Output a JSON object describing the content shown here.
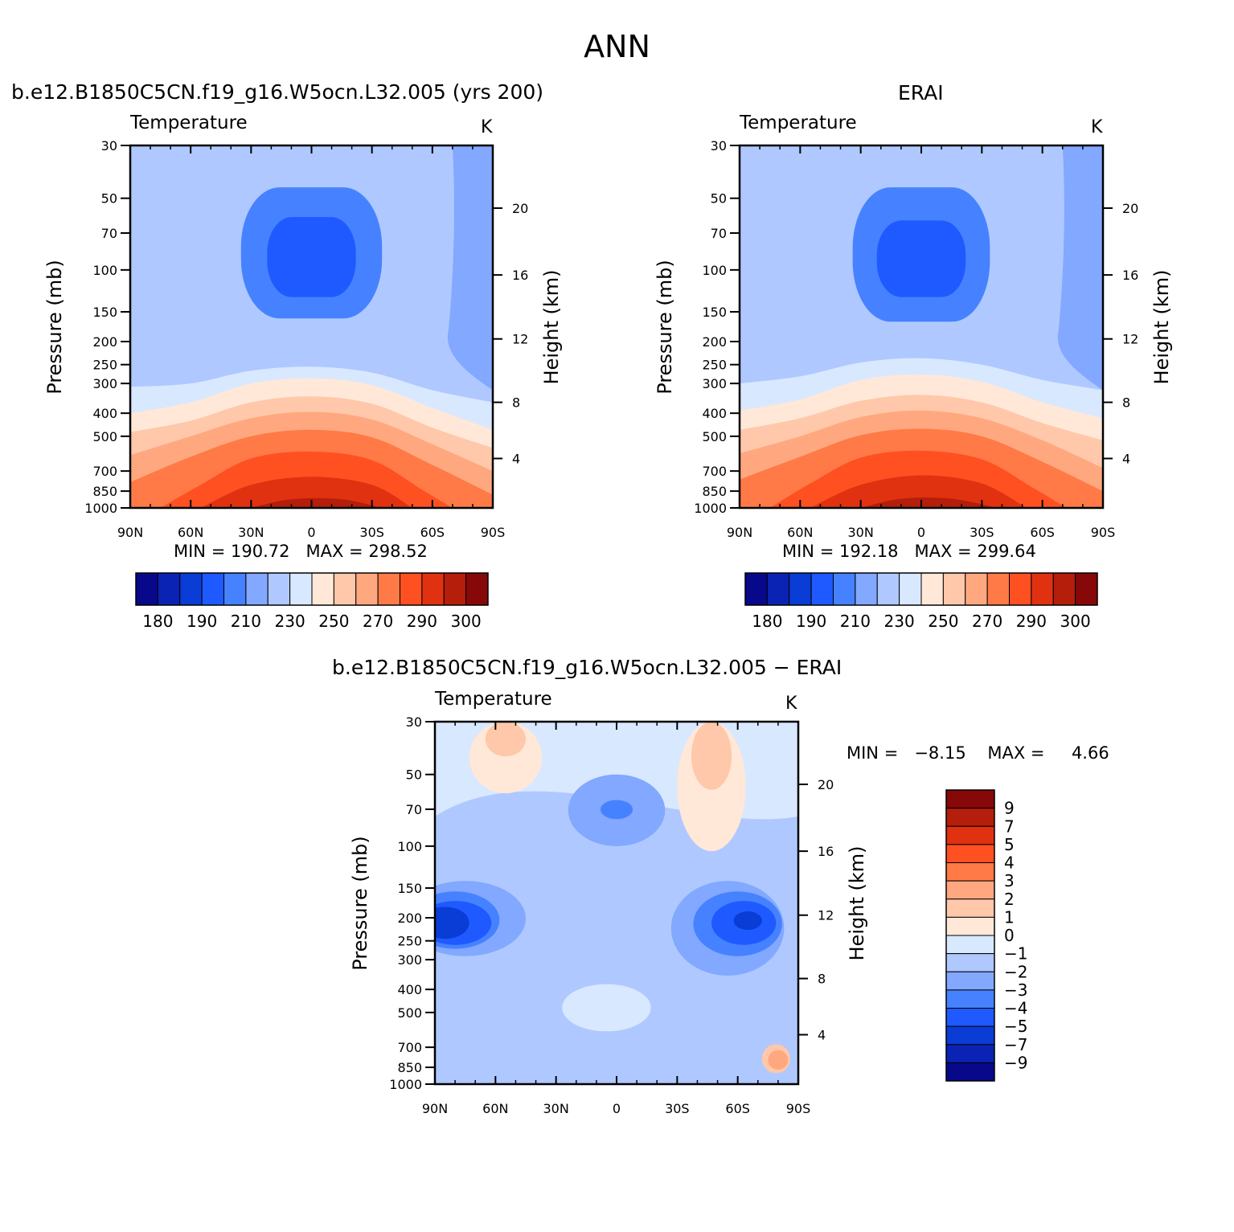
{
  "figure": {
    "title": "ANN"
  },
  "chart_data": [
    {
      "type": "heatmap",
      "panel_title": "b.e12.B1850C5CN.f19_g16.W5ocn.L32.005 (yrs 200)",
      "variable_label": "Temperature",
      "units": "K",
      "xlabel": "",
      "ylabel": "Pressure (mb)",
      "y2label": "Height (km)",
      "x_tick_labels": [
        "90N",
        "60N",
        "30N",
        "0",
        "30S",
        "60S",
        "90S"
      ],
      "x_tick_values": [
        90,
        60,
        30,
        0,
        -30,
        -60,
        -90
      ],
      "y_tick_labels": [
        "30",
        "50",
        "70",
        "100",
        "150",
        "200",
        "250",
        "300",
        "400",
        "500",
        "700",
        "850",
        "1000"
      ],
      "y_tick_values": [
        30,
        50,
        70,
        100,
        150,
        200,
        250,
        300,
        400,
        500,
        700,
        850,
        1000
      ],
      "y_scale": "log",
      "y_reversed": true,
      "y2_tick_labels": [
        "4",
        "8",
        "12",
        "16",
        "20"
      ],
      "min_label": "MIN =",
      "max_label": "MAX =",
      "min": "190.72",
      "max": "298.52",
      "colorbar_levels": [
        "180",
        "190",
        "210",
        "230",
        "250",
        "270",
        "290",
        "300"
      ],
      "contours": [
        {
          "level": 230,
          "points": [
            [
              90,
              310
            ],
            [
              60,
              300
            ],
            [
              30,
              265
            ],
            [
              0,
              255
            ],
            [
              -30,
              270
            ],
            [
              -60,
              320
            ],
            [
              -90,
              360
            ],
            [
              -90,
              1000
            ],
            [
              90,
              1000
            ]
          ]
        },
        {
          "level": 240,
          "points": [
            [
              90,
              400
            ],
            [
              60,
              360
            ],
            [
              30,
              300
            ],
            [
              0,
              285
            ],
            [
              -30,
              305
            ],
            [
              -60,
              380
            ],
            [
              -90,
              470
            ],
            [
              -90,
              1000
            ],
            [
              90,
              1000
            ]
          ]
        },
        {
          "level": 250,
          "points": [
            [
              90,
              480
            ],
            [
              60,
              430
            ],
            [
              30,
              360
            ],
            [
              0,
              340
            ],
            [
              -30,
              365
            ],
            [
              -60,
              460
            ],
            [
              -90,
              560
            ],
            [
              -90,
              1000
            ],
            [
              90,
              1000
            ]
          ]
        },
        {
          "level": 260,
          "points": [
            [
              90,
              600
            ],
            [
              60,
              500
            ],
            [
              30,
              420
            ],
            [
              0,
              395
            ],
            [
              -30,
              425
            ],
            [
              -60,
              540
            ],
            [
              -90,
              700
            ],
            [
              -90,
              1000
            ],
            [
              90,
              1000
            ]
          ]
        },
        {
          "level": 270,
          "points": [
            [
              90,
              780
            ],
            [
              60,
              610
            ],
            [
              30,
              500
            ],
            [
              0,
              470
            ],
            [
              -30,
              505
            ],
            [
              -60,
              660
            ],
            [
              -90,
              880
            ],
            [
              -90,
              1000
            ],
            [
              90,
              1000
            ]
          ]
        },
        {
          "level": 280,
          "points": [
            [
              75,
              1000
            ],
            [
              55,
              800
            ],
            [
              30,
              620
            ],
            [
              0,
              580
            ],
            [
              -30,
              630
            ],
            [
              -55,
              840
            ],
            [
              -70,
              1000
            ]
          ]
        },
        {
          "level": 290,
          "points": [
            [
              55,
              1000
            ],
            [
              30,
              800
            ],
            [
              0,
              740
            ],
            [
              -30,
              800
            ],
            [
              -50,
              1000
            ]
          ]
        },
        {
          "level": 295,
          "points": [
            [
              30,
              1000
            ],
            [
              10,
              920
            ],
            [
              -15,
              920
            ],
            [
              -35,
              1000
            ]
          ]
        }
      ],
      "low_regions": [
        {
          "level": 200,
          "center": [
            0,
            105
          ],
          "rx_deg": 35,
          "top": 45,
          "bottom": 160
        },
        {
          "level": 195,
          "center": [
            0,
            95
          ],
          "rx_deg": 22,
          "top": 60,
          "bottom": 130
        }
      ]
    },
    {
      "type": "heatmap",
      "panel_title": "ERAI",
      "variable_label": "Temperature",
      "units": "K",
      "xlabel": "",
      "ylabel": "Pressure (mb)",
      "y2label": "Height (km)",
      "x_tick_labels": [
        "90N",
        "60N",
        "30N",
        "0",
        "30S",
        "60S",
        "90S"
      ],
      "x_tick_values": [
        90,
        60,
        30,
        0,
        -30,
        -60,
        -90
      ],
      "y_tick_labels": [
        "30",
        "50",
        "70",
        "100",
        "150",
        "200",
        "250",
        "300",
        "400",
        "500",
        "700",
        "850",
        "1000"
      ],
      "y_tick_values": [
        30,
        50,
        70,
        100,
        150,
        200,
        250,
        300,
        400,
        500,
        700,
        850,
        1000
      ],
      "y_scale": "log",
      "y_reversed": true,
      "y2_tick_labels": [
        "4",
        "8",
        "12",
        "16",
        "20"
      ],
      "min_label": "MIN =",
      "max_label": "MAX =",
      "min": "192.18",
      "max": "299.64",
      "colorbar_levels": [
        "180",
        "190",
        "210",
        "230",
        "250",
        "270",
        "290",
        "300"
      ],
      "contours": [
        {
          "level": 230,
          "points": [
            [
              90,
              300
            ],
            [
              60,
              280
            ],
            [
              30,
              245
            ],
            [
              0,
              235
            ],
            [
              -30,
              250
            ],
            [
              -60,
              290
            ],
            [
              -90,
              320
            ],
            [
              -90,
              1000
            ],
            [
              90,
              1000
            ]
          ]
        },
        {
          "level": 240,
          "points": [
            [
              90,
              390
            ],
            [
              60,
              350
            ],
            [
              30,
              290
            ],
            [
              0,
              275
            ],
            [
              -30,
              295
            ],
            [
              -60,
              360
            ],
            [
              -90,
              420
            ],
            [
              -90,
              1000
            ],
            [
              90,
              1000
            ]
          ]
        },
        {
          "level": 250,
          "points": [
            [
              90,
              470
            ],
            [
              60,
              420
            ],
            [
              30,
              355
            ],
            [
              0,
              335
            ],
            [
              -30,
              360
            ],
            [
              -60,
              440
            ],
            [
              -90,
              520
            ],
            [
              -90,
              1000
            ],
            [
              90,
              1000
            ]
          ]
        },
        {
          "level": 260,
          "points": [
            [
              90,
              590
            ],
            [
              60,
              500
            ],
            [
              30,
              415
            ],
            [
              0,
              390
            ],
            [
              -30,
              420
            ],
            [
              -60,
              520
            ],
            [
              -90,
              680
            ],
            [
              -90,
              1000
            ],
            [
              90,
              1000
            ]
          ]
        },
        {
          "level": 270,
          "points": [
            [
              90,
              760
            ],
            [
              60,
              610
            ],
            [
              30,
              495
            ],
            [
              0,
              465
            ],
            [
              -30,
              500
            ],
            [
              -60,
              640
            ],
            [
              -90,
              850
            ],
            [
              -90,
              1000
            ],
            [
              90,
              1000
            ]
          ]
        },
        {
          "level": 280,
          "points": [
            [
              75,
              1000
            ],
            [
              55,
              790
            ],
            [
              30,
              615
            ],
            [
              0,
              575
            ],
            [
              -30,
              625
            ],
            [
              -55,
              820
            ],
            [
              -72,
              1000
            ]
          ]
        },
        {
          "level": 290,
          "points": [
            [
              55,
              1000
            ],
            [
              30,
              800
            ],
            [
              0,
              730
            ],
            [
              -30,
              790
            ],
            [
              -52,
              1000
            ]
          ]
        },
        {
          "level": 295,
          "points": [
            [
              30,
              1000
            ],
            [
              10,
              915
            ],
            [
              -15,
              915
            ],
            [
              -38,
              1000
            ]
          ]
        }
      ],
      "low_regions": [
        {
          "level": 200,
          "center": [
            0,
            100
          ],
          "rx_deg": 34,
          "top": 45,
          "bottom": 165
        },
        {
          "level": 195,
          "center": [
            0,
            95
          ],
          "rx_deg": 22,
          "top": 62,
          "bottom": 130
        }
      ]
    },
    {
      "type": "heatmap",
      "panel_title": "b.e12.B1850C5CN.f19_g16.W5ocn.L32.005 − ERAI",
      "variable_label": "Temperature",
      "units": "K",
      "xlabel": "",
      "ylabel": "Pressure (mb)",
      "y2label": "Height (km)",
      "x_tick_labels": [
        "90N",
        "60N",
        "30N",
        "0",
        "30S",
        "60S",
        "90S"
      ],
      "x_tick_values": [
        90,
        60,
        30,
        0,
        -30,
        -60,
        -90
      ],
      "y_tick_labels": [
        "30",
        "50",
        "70",
        "100",
        "150",
        "200",
        "250",
        "300",
        "400",
        "500",
        "700",
        "850",
        "1000"
      ],
      "y_tick_values": [
        30,
        50,
        70,
        100,
        150,
        200,
        250,
        300,
        400,
        500,
        700,
        850,
        1000
      ],
      "y_scale": "log",
      "y_reversed": true,
      "y2_tick_labels": [
        "4",
        "8",
        "12",
        "16",
        "20"
      ],
      "min_label": "MIN =",
      "max_label": "MAX =",
      "min": "−8.15",
      "max": "4.66",
      "colorbar_levels": [
        "9",
        "7",
        "5",
        "4",
        "3",
        "2",
        "1",
        "0",
        "−1",
        "−2",
        "−3",
        "−4",
        "−5",
        "−7",
        "−9"
      ],
      "features": [
        {
          "level": 1,
          "center": [
            55,
            38
          ],
          "rx_deg": 18,
          "top": 30,
          "bottom": 60
        },
        {
          "level": 2,
          "center": [
            55,
            32
          ],
          "rx_deg": 10,
          "top": 30,
          "bottom": 42
        },
        {
          "level": 1,
          "center": [
            -47,
            50
          ],
          "rx_deg": 17,
          "top": 30,
          "bottom": 105
        },
        {
          "level": 2,
          "center": [
            -47,
            38
          ],
          "rx_deg": 10,
          "top": 30,
          "bottom": 58
        },
        {
          "level": -3,
          "center": [
            0,
            70
          ],
          "rx_deg": 24,
          "top": 50,
          "bottom": 100
        },
        {
          "level": -4,
          "center": [
            0,
            70
          ],
          "rx_deg": 8,
          "top": 64,
          "bottom": 77
        },
        {
          "level": -3,
          "center": [
            75,
            205
          ],
          "rx_deg": 30,
          "top": 140,
          "bottom": 290
        },
        {
          "level": -4,
          "center": [
            80,
            205
          ],
          "rx_deg": 22,
          "top": 155,
          "bottom": 270
        },
        {
          "level": -5,
          "center": [
            80,
            210
          ],
          "rx_deg": 18,
          "top": 170,
          "bottom": 260
        },
        {
          "level": -7,
          "center": [
            85,
            210
          ],
          "rx_deg": 12,
          "top": 180,
          "bottom": 245
        },
        {
          "level": -3,
          "center": [
            -55,
            210
          ],
          "rx_deg": 28,
          "top": 140,
          "bottom": 350
        },
        {
          "level": -4,
          "center": [
            -60,
            205
          ],
          "rx_deg": 22,
          "top": 155,
          "bottom": 290
        },
        {
          "level": -5,
          "center": [
            -63,
            205
          ],
          "rx_deg": 16,
          "top": 170,
          "bottom": 260
        },
        {
          "level": -7,
          "center": [
            -65,
            205
          ],
          "rx_deg": 7,
          "top": 188,
          "bottom": 225
        },
        {
          "level": -1,
          "center": [
            5,
            450
          ],
          "rx_deg": 22,
          "top": 380,
          "bottom": 600
        },
        {
          "level": 0,
          "center": [
            0,
            440
          ],
          "rx_deg": 10,
          "top": 400,
          "bottom": 520
        },
        {
          "level": 2,
          "center": [
            -79,
            790
          ],
          "rx_deg": 7,
          "top": 680,
          "bottom": 900
        },
        {
          "level": 3,
          "center": [
            -80,
            800
          ],
          "rx_deg": 5,
          "top": 720,
          "bottom": 870
        }
      ]
    }
  ]
}
